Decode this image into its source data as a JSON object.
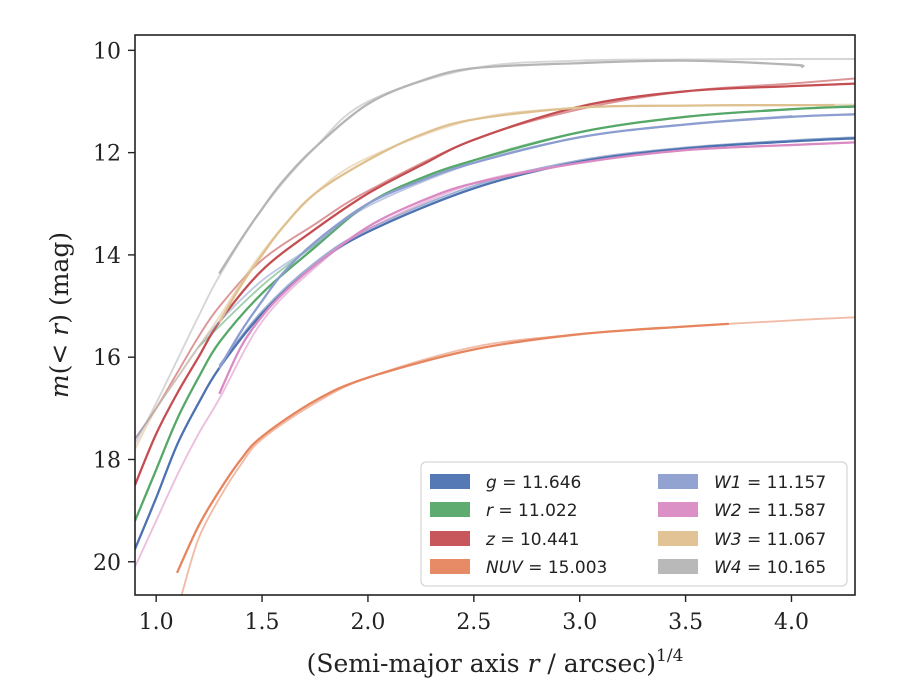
{
  "chart_data": {
    "type": "line",
    "title": "",
    "xlabel": "(Semi-major axis r / arcsec)",
    "xlabel_var": "r",
    "xlabel_parts": [
      "(Semi-major axis ",
      "r",
      " / arcsec)"
    ],
    "xlabel_sup": "1/4",
    "ylabel": "m(< r) (mag)",
    "ylabel_parts": [
      "m",
      "(< ",
      "r",
      ") (mag)"
    ],
    "xlim": [
      0.9,
      4.3
    ],
    "ylim": [
      20.65,
      9.7
    ],
    "y_inverted": true,
    "x_ticks": [
      1.0,
      1.5,
      2.0,
      2.5,
      3.0,
      3.5,
      4.0
    ],
    "x_tick_labels": [
      "1.0",
      "1.5",
      "2.0",
      "2.5",
      "3.0",
      "3.5",
      "4.0"
    ],
    "y_ticks": [
      10,
      12,
      14,
      16,
      18,
      20
    ],
    "y_tick_labels": [
      "10",
      "12",
      "14",
      "16",
      "18",
      "20"
    ],
    "grid": false,
    "legend_position": "bottom-right",
    "legend_columns": 2,
    "series": [
      {
        "name": "g",
        "label_var": "g",
        "label_value": "= 11.646",
        "color": "#4c72b0",
        "curves": [
          {
            "opacity": 1.0,
            "points": [
              [
                0.9,
                19.75
              ],
              [
                1.0,
                18.75
              ],
              [
                1.1,
                17.7
              ],
              [
                1.2,
                16.9
              ],
              [
                1.3,
                16.2
              ],
              [
                1.5,
                15.15
              ],
              [
                1.75,
                14.2
              ],
              [
                2.0,
                13.55
              ],
              [
                2.5,
                12.7
              ],
              [
                3.0,
                12.18
              ],
              [
                3.5,
                11.92
              ],
              [
                4.0,
                11.78
              ],
              [
                4.3,
                11.72
              ]
            ]
          },
          {
            "opacity": 0.55,
            "points": [
              [
                1.3,
                16.15
              ],
              [
                1.5,
                15.1
              ],
              [
                1.75,
                14.15
              ],
              [
                2.0,
                13.5
              ],
              [
                2.5,
                12.65
              ],
              [
                3.0,
                12.15
              ],
              [
                3.5,
                11.9
              ],
              [
                4.0,
                11.76
              ],
              [
                4.3,
                11.7
              ]
            ]
          }
        ]
      },
      {
        "name": "r",
        "label_var": "r",
        "label_value": "= 11.022",
        "color": "#55a868",
        "curves": [
          {
            "opacity": 1.0,
            "points": [
              [
                0.9,
                19.2
              ],
              [
                1.0,
                18.2
              ],
              [
                1.1,
                17.2
              ],
              [
                1.2,
                16.4
              ],
              [
                1.3,
                15.7
              ],
              [
                1.5,
                14.75
              ],
              [
                1.75,
                13.85
              ],
              [
                2.0,
                13.0
              ],
              [
                2.25,
                12.5
              ],
              [
                2.5,
                12.15
              ],
              [
                3.0,
                11.6
              ],
              [
                3.5,
                11.3
              ],
              [
                4.0,
                11.15
              ],
              [
                4.3,
                11.1
              ]
            ]
          },
          {
            "opacity": 0.55,
            "points": [
              [
                1.2,
                15.8
              ],
              [
                1.5,
                14.6
              ],
              [
                1.75,
                13.8
              ],
              [
                2.0,
                13.0
              ],
              [
                2.5,
                12.15
              ],
              [
                3.0,
                11.6
              ],
              [
                3.5,
                11.3
              ],
              [
                4.0,
                11.15
              ],
              [
                4.3,
                11.08
              ]
            ]
          }
        ]
      },
      {
        "name": "z",
        "label_var": "z",
        "label_value": "= 10.441",
        "color": "#c44e52",
        "curves": [
          {
            "opacity": 1.0,
            "points": [
              [
                0.9,
                18.5
              ],
              [
                1.0,
                17.5
              ],
              [
                1.1,
                16.7
              ],
              [
                1.2,
                16.0
              ],
              [
                1.3,
                15.3
              ],
              [
                1.5,
                14.3
              ],
              [
                1.75,
                13.5
              ],
              [
                2.0,
                12.8
              ],
              [
                2.25,
                12.25
              ],
              [
                2.5,
                11.75
              ],
              [
                3.0,
                11.1
              ],
              [
                3.5,
                10.8
              ],
              [
                4.0,
                10.7
              ],
              [
                4.3,
                10.65
              ]
            ]
          },
          {
            "opacity": 0.6,
            "points": [
              [
                0.9,
                17.6
              ],
              [
                1.0,
                17.0
              ],
              [
                1.1,
                16.3
              ],
              [
                1.2,
                15.6
              ],
              [
                1.3,
                15.0
              ],
              [
                1.5,
                14.1
              ],
              [
                1.75,
                13.4
              ],
              [
                2.0,
                12.75
              ],
              [
                2.5,
                11.75
              ],
              [
                3.0,
                11.15
              ],
              [
                3.5,
                10.8
              ],
              [
                4.0,
                10.65
              ],
              [
                4.3,
                10.55
              ]
            ]
          }
        ]
      },
      {
        "name": "NUV",
        "label_var": "NUV",
        "label_value": "= 15.003",
        "color": "#e6855e",
        "curves": [
          {
            "opacity": 1.0,
            "points": [
              [
                1.1,
                20.2
              ],
              [
                1.2,
                19.3
              ],
              [
                1.3,
                18.6
              ],
              [
                1.4,
                18.0
              ],
              [
                1.5,
                17.55
              ],
              [
                1.75,
                16.85
              ],
              [
                2.0,
                16.4
              ],
              [
                2.5,
                15.85
              ],
              [
                3.0,
                15.55
              ],
              [
                3.5,
                15.4
              ],
              [
                3.7,
                15.35
              ]
            ]
          },
          {
            "opacity": 0.55,
            "points": [
              [
                1.12,
                20.65
              ],
              [
                1.2,
                19.55
              ],
              [
                1.3,
                18.75
              ],
              [
                1.4,
                18.1
              ],
              [
                1.5,
                17.6
              ],
              [
                1.75,
                16.9
              ],
              [
                2.0,
                16.4
              ],
              [
                2.5,
                15.8
              ],
              [
                3.0,
                15.55
              ],
              [
                3.5,
                15.4
              ],
              [
                4.0,
                15.28
              ],
              [
                4.3,
                15.22
              ]
            ]
          }
        ]
      },
      {
        "name": "W1",
        "label_var": "W1",
        "label_value": "= 11.157",
        "color": "#8c9ed0",
        "curves": [
          {
            "opacity": 1.0,
            "points": [
              [
                1.3,
                16.2
              ],
              [
                1.4,
                15.5
              ],
              [
                1.5,
                14.9
              ],
              [
                1.6,
                14.35
              ],
              [
                1.75,
                13.75
              ],
              [
                2.0,
                13.0
              ],
              [
                2.25,
                12.55
              ],
              [
                2.5,
                12.2
              ],
              [
                3.0,
                11.7
              ],
              [
                3.5,
                11.45
              ],
              [
                4.0,
                11.3
              ],
              [
                4.3,
                11.25
              ]
            ]
          },
          {
            "opacity": 0.55,
            "points": [
              [
                0.9,
                17.6
              ],
              [
                1.0,
                17.0
              ],
              [
                1.1,
                16.4
              ],
              [
                1.2,
                15.8
              ],
              [
                1.3,
                15.3
              ],
              [
                1.5,
                14.5
              ],
              [
                1.75,
                13.8
              ],
              [
                2.0,
                13.05
              ],
              [
                2.5,
                12.2
              ],
              [
                3.0,
                11.7
              ],
              [
                3.5,
                11.45
              ],
              [
                4.0,
                11.28
              ]
            ]
          }
        ]
      },
      {
        "name": "W2",
        "label_var": "W2",
        "label_value": "= 11.587",
        "color": "#da8bc3",
        "curves": [
          {
            "opacity": 1.0,
            "points": [
              [
                1.3,
                16.7
              ],
              [
                1.4,
                15.8
              ],
              [
                1.5,
                15.2
              ],
              [
                1.6,
                14.75
              ],
              [
                1.75,
                14.2
              ],
              [
                2.0,
                13.45
              ],
              [
                2.25,
                12.95
              ],
              [
                2.5,
                12.6
              ],
              [
                3.0,
                12.2
              ],
              [
                3.5,
                11.95
              ],
              [
                4.0,
                11.85
              ],
              [
                4.3,
                11.8
              ]
            ]
          },
          {
            "opacity": 0.55,
            "points": [
              [
                0.9,
                20.1
              ],
              [
                1.0,
                19.2
              ],
              [
                1.1,
                18.3
              ],
              [
                1.2,
                17.5
              ],
              [
                1.3,
                16.8
              ],
              [
                1.5,
                15.3
              ],
              [
                1.75,
                14.25
              ],
              [
                2.0,
                13.5
              ],
              [
                2.5,
                12.6
              ],
              [
                3.0,
                12.2
              ],
              [
                3.5,
                11.95
              ],
              [
                4.0,
                11.85
              ],
              [
                4.3,
                11.8
              ]
            ]
          }
        ]
      },
      {
        "name": "W3",
        "label_var": "W3",
        "label_value": "= 11.067",
        "color": "#dfc08f",
        "curves": [
          {
            "opacity": 1.0,
            "points": [
              [
                1.3,
                15.3
              ],
              [
                1.4,
                14.6
              ],
              [
                1.5,
                14.0
              ],
              [
                1.6,
                13.45
              ],
              [
                1.75,
                12.8
              ],
              [
                2.0,
                12.15
              ],
              [
                2.25,
                11.65
              ],
              [
                2.5,
                11.35
              ],
              [
                3.0,
                11.12
              ],
              [
                3.5,
                11.08
              ],
              [
                4.0,
                11.07
              ],
              [
                4.2,
                11.07
              ]
            ]
          },
          {
            "opacity": 0.55,
            "points": [
              [
                0.9,
                17.8
              ],
              [
                1.0,
                17.0
              ],
              [
                1.1,
                16.4
              ],
              [
                1.2,
                15.8
              ],
              [
                1.3,
                15.2
              ],
              [
                1.5,
                13.95
              ],
              [
                1.75,
                12.8
              ],
              [
                2.0,
                12.1
              ],
              [
                2.5,
                11.35
              ],
              [
                3.0,
                11.12
              ],
              [
                3.5,
                11.08
              ],
              [
                4.0,
                11.07
              ],
              [
                4.3,
                11.06
              ]
            ]
          }
        ]
      },
      {
        "name": "W4",
        "label_var": "W4",
        "label_value": "= 10.165",
        "color": "#b5b5b5",
        "curves": [
          {
            "opacity": 1.0,
            "points": [
              [
                1.3,
                14.35
              ],
              [
                1.4,
                13.7
              ],
              [
                1.5,
                13.1
              ],
              [
                1.6,
                12.55
              ],
              [
                1.75,
                11.9
              ],
              [
                2.0,
                11.05
              ],
              [
                2.25,
                10.6
              ],
              [
                2.5,
                10.35
              ],
              [
                3.0,
                10.25
              ],
              [
                3.5,
                10.2
              ],
              [
                4.0,
                10.28
              ],
              [
                4.05,
                10.32
              ]
            ]
          },
          {
            "opacity": 0.55,
            "points": [
              [
                0.9,
                17.7
              ],
              [
                1.0,
                16.9
              ],
              [
                1.1,
                16.05
              ],
              [
                1.2,
                15.2
              ],
              [
                1.3,
                14.4
              ],
              [
                1.5,
                13.1
              ],
              [
                1.75,
                11.9
              ],
              [
                2.0,
                11.0
              ],
              [
                2.5,
                10.35
              ],
              [
                3.0,
                10.2
              ],
              [
                3.5,
                10.18
              ],
              [
                4.0,
                10.17
              ],
              [
                4.3,
                10.17
              ]
            ]
          }
        ]
      }
    ]
  }
}
